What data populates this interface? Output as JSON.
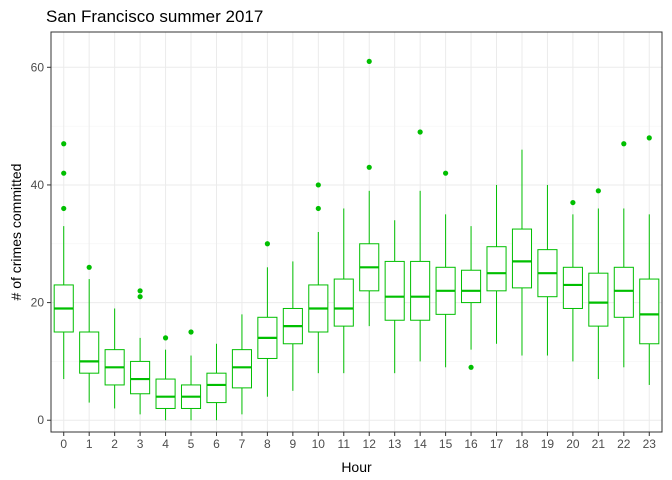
{
  "chart_data": {
    "type": "boxplot",
    "title": "San Francisco summer 2017",
    "xlabel": "Hour",
    "ylabel": "# of crimes committed",
    "ylim": [
      -2,
      66
    ],
    "yticks": [
      0,
      20,
      40,
      60
    ],
    "grid": true,
    "color": "#00bf00",
    "categories": [
      "0",
      "1",
      "2",
      "3",
      "4",
      "5",
      "6",
      "7",
      "8",
      "9",
      "10",
      "11",
      "12",
      "13",
      "14",
      "15",
      "16",
      "17",
      "18",
      "19",
      "20",
      "21",
      "22",
      "23"
    ],
    "boxes": [
      {
        "x": "0",
        "min": 7,
        "q1": 15,
        "median": 19,
        "q3": 23,
        "max": 33,
        "outliers": [
          36,
          42,
          47
        ]
      },
      {
        "x": "1",
        "min": 3,
        "q1": 8,
        "median": 10,
        "q3": 15,
        "max": 24,
        "outliers": [
          26
        ]
      },
      {
        "x": "2",
        "min": 2,
        "q1": 6,
        "median": 9,
        "q3": 12,
        "max": 19,
        "outliers": []
      },
      {
        "x": "3",
        "min": 1,
        "q1": 4.5,
        "median": 7,
        "q3": 10,
        "max": 14,
        "outliers": [
          21,
          22
        ]
      },
      {
        "x": "4",
        "min": 0,
        "q1": 2,
        "median": 4,
        "q3": 7,
        "max": 12,
        "outliers": [
          14
        ]
      },
      {
        "x": "5",
        "min": 0,
        "q1": 2,
        "median": 4,
        "q3": 6,
        "max": 11,
        "outliers": [
          15
        ]
      },
      {
        "x": "6",
        "min": 0,
        "q1": 3,
        "median": 6,
        "q3": 8,
        "max": 13,
        "outliers": []
      },
      {
        "x": "7",
        "min": 1,
        "q1": 5.5,
        "median": 9,
        "q3": 12,
        "max": 18,
        "outliers": []
      },
      {
        "x": "8",
        "min": 4,
        "q1": 10.5,
        "median": 14,
        "q3": 17.5,
        "max": 26,
        "outliers": [
          30
        ]
      },
      {
        "x": "9",
        "min": 5,
        "q1": 13,
        "median": 16,
        "q3": 19,
        "max": 27,
        "outliers": []
      },
      {
        "x": "10",
        "min": 8,
        "q1": 15,
        "median": 19,
        "q3": 23,
        "max": 32,
        "outliers": [
          36,
          40
        ]
      },
      {
        "x": "11",
        "min": 8,
        "q1": 16,
        "median": 19,
        "q3": 24,
        "max": 36,
        "outliers": []
      },
      {
        "x": "12",
        "min": 16,
        "q1": 22,
        "median": 26,
        "q3": 30,
        "max": 39,
        "outliers": [
          43,
          61
        ]
      },
      {
        "x": "13",
        "min": 8,
        "q1": 17,
        "median": 21,
        "q3": 27,
        "max": 34,
        "outliers": []
      },
      {
        "x": "14",
        "min": 10,
        "q1": 17,
        "median": 21,
        "q3": 27,
        "max": 39,
        "outliers": [
          49
        ]
      },
      {
        "x": "15",
        "min": 9,
        "q1": 18,
        "median": 22,
        "q3": 26,
        "max": 35,
        "outliers": [
          42
        ]
      },
      {
        "x": "16",
        "min": 12,
        "q1": 20,
        "median": 22,
        "q3": 25.5,
        "max": 33,
        "outliers": [
          9
        ]
      },
      {
        "x": "17",
        "min": 13,
        "q1": 22,
        "median": 25,
        "q3": 29.5,
        "max": 40,
        "outliers": []
      },
      {
        "x": "18",
        "min": 11,
        "q1": 22.5,
        "median": 27,
        "q3": 32.5,
        "max": 46,
        "outliers": []
      },
      {
        "x": "19",
        "min": 11,
        "q1": 21,
        "median": 25,
        "q3": 29,
        "max": 40,
        "outliers": []
      },
      {
        "x": "20",
        "min": 10,
        "q1": 19,
        "median": 23,
        "q3": 26,
        "max": 35,
        "outliers": [
          37
        ]
      },
      {
        "x": "21",
        "min": 7,
        "q1": 16,
        "median": 20,
        "q3": 25,
        "max": 36,
        "outliers": [
          39
        ]
      },
      {
        "x": "22",
        "min": 9,
        "q1": 17.5,
        "median": 22,
        "q3": 26,
        "max": 36,
        "outliers": [
          47
        ]
      },
      {
        "x": "23",
        "min": 6,
        "q1": 13,
        "median": 18,
        "q3": 24,
        "max": 35,
        "outliers": [
          48
        ]
      }
    ]
  }
}
